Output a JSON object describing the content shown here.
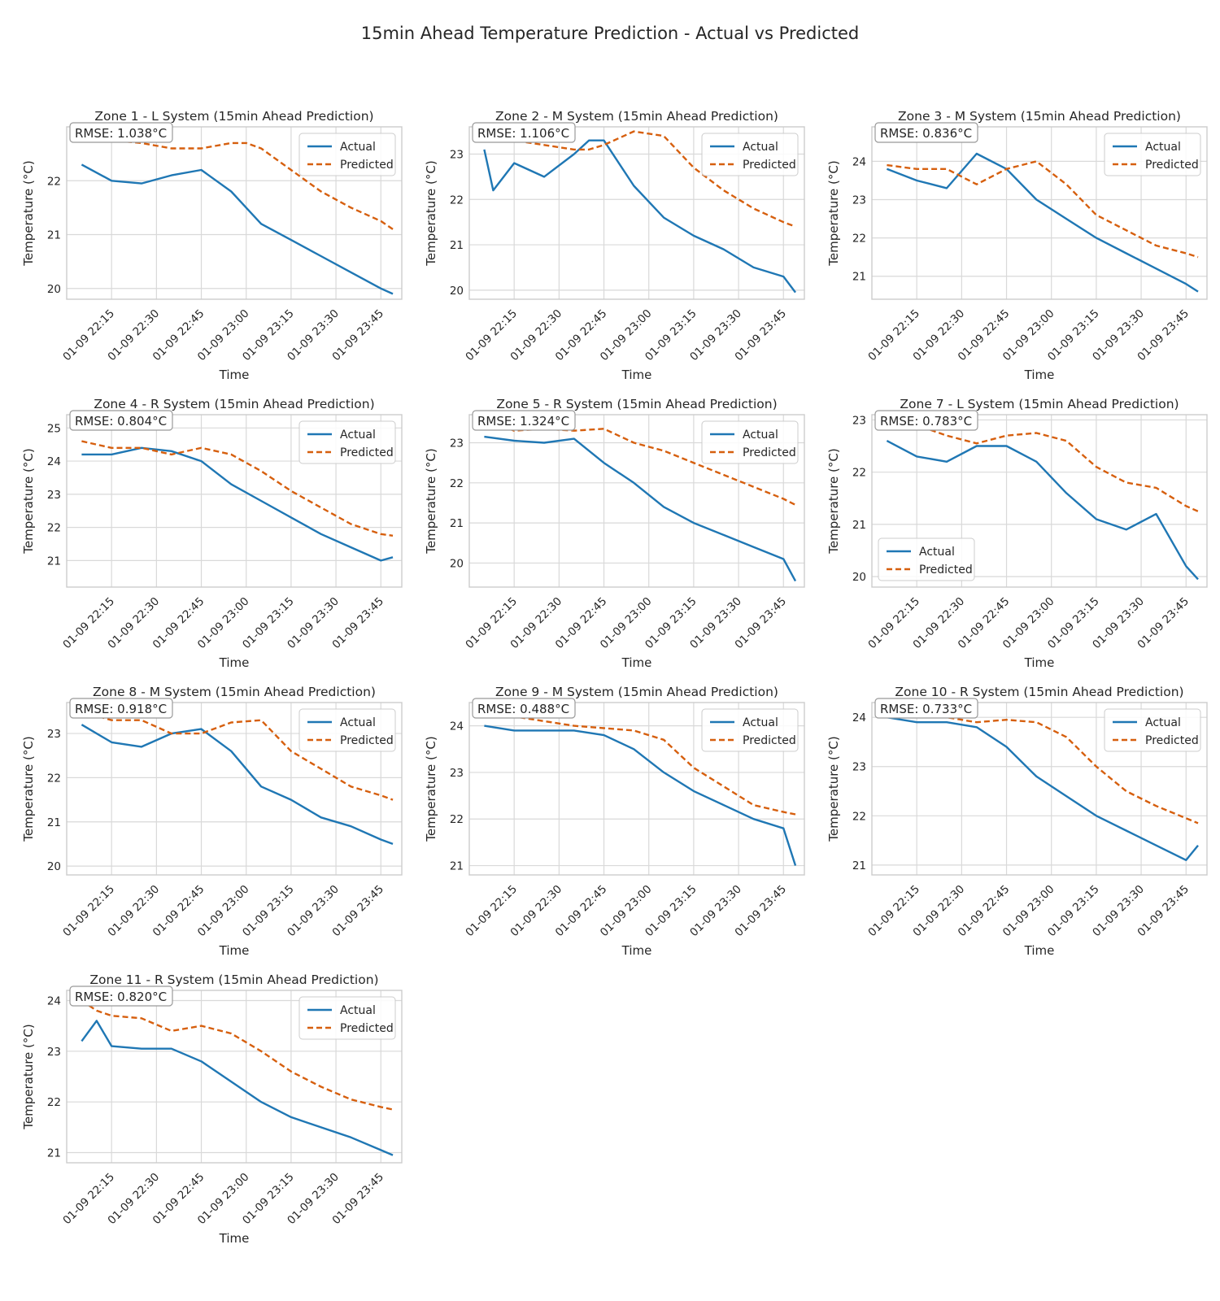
{
  "figure_title": "15min Ahead Temperature Prediction - Actual vs Predicted",
  "colors": {
    "actual": "#1f77b4",
    "predicted": "#d65f0e",
    "grid": "#d9d9d9",
    "axes": "#cccccc"
  },
  "legend_labels": {
    "actual": "Actual",
    "predicted": "Predicted"
  },
  "x_ticks": [
    "01-09 22:15",
    "01-09 22:30",
    "01-09 22:45",
    "01-09 23:00",
    "01-09 23:15",
    "01-09 23:30",
    "01-09 23:45"
  ],
  "x_label": "Time",
  "y_label": "Temperature (°C)",
  "chart_data": [
    {
      "type": "line",
      "title": "Zone 1 - L System (15min Ahead Prediction)",
      "rmse": "RMSE: 1.038°C",
      "ylim": [
        19.8,
        23.0
      ],
      "yticks": [
        20,
        21,
        22
      ],
      "legend": "top-right",
      "x": [
        "22:05",
        "22:15",
        "22:25",
        "22:35",
        "22:45",
        "22:55",
        "23:00",
        "23:05",
        "23:15",
        "23:25",
        "23:35",
        "23:45",
        "23:49"
      ],
      "series": [
        {
          "name": "Actual",
          "values": [
            22.3,
            22.0,
            21.95,
            22.1,
            22.2,
            21.8,
            21.5,
            21.2,
            20.9,
            20.6,
            20.3,
            20.0,
            19.9
          ]
        },
        {
          "name": "Predicted",
          "values": [
            22.8,
            22.75,
            22.7,
            22.6,
            22.6,
            22.7,
            22.7,
            22.6,
            22.2,
            21.8,
            21.5,
            21.25,
            21.1
          ]
        }
      ]
    },
    {
      "type": "line",
      "title": "Zone 2 - M System (15min Ahead Prediction)",
      "rmse": "RMSE: 1.106°C",
      "ylim": [
        19.8,
        23.6
      ],
      "yticks": [
        20,
        21,
        22,
        23
      ],
      "legend": "top-right",
      "x": [
        "22:05",
        "22:08",
        "22:15",
        "22:25",
        "22:35",
        "22:40",
        "22:45",
        "22:55",
        "23:05",
        "23:15",
        "23:25",
        "23:35",
        "23:45",
        "23:49"
      ],
      "series": [
        {
          "name": "Actual",
          "values": [
            23.1,
            22.2,
            22.8,
            22.5,
            23.0,
            23.3,
            23.3,
            22.3,
            21.6,
            21.2,
            20.9,
            20.5,
            20.3,
            19.95
          ]
        },
        {
          "name": "Predicted",
          "values": [
            23.6,
            23.5,
            23.3,
            23.2,
            23.1,
            23.1,
            23.2,
            23.5,
            23.4,
            22.7,
            22.2,
            21.8,
            21.5,
            21.4
          ]
        }
      ]
    },
    {
      "type": "line",
      "title": "Zone 3 - M System (15min Ahead Prediction)",
      "rmse": "RMSE: 0.836°C",
      "ylim": [
        20.4,
        24.9
      ],
      "yticks": [
        21,
        22,
        23,
        24
      ],
      "legend": "top-right",
      "x": [
        "22:05",
        "22:15",
        "22:25",
        "22:35",
        "22:45",
        "22:55",
        "23:05",
        "23:15",
        "23:25",
        "23:35",
        "23:45",
        "23:49"
      ],
      "series": [
        {
          "name": "Actual",
          "values": [
            23.8,
            23.5,
            23.3,
            24.2,
            23.8,
            23.0,
            22.5,
            22.0,
            21.6,
            21.2,
            20.8,
            20.6
          ]
        },
        {
          "name": "Predicted",
          "values": [
            23.9,
            23.8,
            23.8,
            23.4,
            23.8,
            24.0,
            23.4,
            22.6,
            22.2,
            21.8,
            21.6,
            21.5
          ]
        }
      ]
    },
    {
      "type": "line",
      "title": "Zone 4 - R System (15min Ahead Prediction)",
      "rmse": "RMSE: 0.804°C",
      "ylim": [
        20.2,
        25.4
      ],
      "yticks": [
        21,
        22,
        23,
        24,
        25
      ],
      "legend": "top-right",
      "x": [
        "22:05",
        "22:15",
        "22:25",
        "22:35",
        "22:45",
        "22:55",
        "23:05",
        "23:15",
        "23:25",
        "23:35",
        "23:45",
        "23:49"
      ],
      "series": [
        {
          "name": "Actual",
          "values": [
            24.2,
            24.2,
            24.4,
            24.3,
            24.0,
            23.3,
            22.8,
            22.3,
            21.8,
            21.4,
            21.0,
            21.1
          ]
        },
        {
          "name": "Predicted",
          "values": [
            24.6,
            24.4,
            24.4,
            24.2,
            24.4,
            24.2,
            23.7,
            23.1,
            22.6,
            22.1,
            21.8,
            21.75
          ]
        }
      ]
    },
    {
      "type": "line",
      "title": "Zone 5 - R System (15min Ahead Prediction)",
      "rmse": "RMSE: 1.324°C",
      "ylim": [
        19.4,
        23.7
      ],
      "yticks": [
        20,
        21,
        22,
        23
      ],
      "legend": "top-right",
      "x": [
        "22:05",
        "22:15",
        "22:25",
        "22:35",
        "22:45",
        "22:55",
        "23:05",
        "23:15",
        "23:25",
        "23:35",
        "23:45",
        "23:49"
      ],
      "series": [
        {
          "name": "Actual",
          "values": [
            23.15,
            23.05,
            23.0,
            23.1,
            22.5,
            22.0,
            21.4,
            21.0,
            20.7,
            20.4,
            20.1,
            19.55
          ]
        },
        {
          "name": "Predicted",
          "values": [
            23.6,
            23.3,
            23.35,
            23.3,
            23.35,
            23.0,
            22.8,
            22.5,
            22.2,
            21.9,
            21.6,
            21.45
          ]
        }
      ]
    },
    {
      "type": "line",
      "title": "Zone 7 - L System (15min Ahead Prediction)",
      "rmse": "RMSE: 0.783°C",
      "ylim": [
        19.8,
        23.1
      ],
      "yticks": [
        20,
        21,
        22,
        23
      ],
      "legend": "bottom-left",
      "x": [
        "22:05",
        "22:15",
        "22:25",
        "22:35",
        "22:45",
        "22:55",
        "23:05",
        "23:15",
        "23:25",
        "23:35",
        "23:45",
        "23:49"
      ],
      "series": [
        {
          "name": "Actual",
          "values": [
            22.6,
            22.3,
            22.2,
            22.5,
            22.5,
            22.2,
            21.6,
            21.1,
            20.9,
            21.2,
            20.2,
            19.95
          ]
        },
        {
          "name": "Predicted",
          "values": [
            23.0,
            22.9,
            22.7,
            22.55,
            22.7,
            22.75,
            22.6,
            22.1,
            21.8,
            21.7,
            21.35,
            21.25
          ]
        }
      ]
    },
    {
      "type": "line",
      "title": "Zone 8 - M System (15min Ahead Prediction)",
      "rmse": "RMSE: 0.918°C",
      "ylim": [
        19.8,
        23.7
      ],
      "yticks": [
        20,
        21,
        22,
        23
      ],
      "legend": "top-right",
      "x": [
        "22:05",
        "22:15",
        "22:25",
        "22:35",
        "22:45",
        "22:55",
        "23:05",
        "23:15",
        "23:25",
        "23:35",
        "23:45",
        "23:49"
      ],
      "series": [
        {
          "name": "Actual",
          "values": [
            23.2,
            22.8,
            22.7,
            23.0,
            23.1,
            22.6,
            21.8,
            21.5,
            21.1,
            20.9,
            20.6,
            20.5
          ]
        },
        {
          "name": "Predicted",
          "values": [
            23.5,
            23.3,
            23.3,
            23.0,
            23.0,
            23.25,
            23.3,
            22.6,
            22.2,
            21.8,
            21.6,
            21.5
          ]
        }
      ]
    },
    {
      "type": "line",
      "title": "Zone 9 - M System (15min Ahead Prediction)",
      "rmse": "RMSE: 0.488°C",
      "ylim": [
        20.8,
        24.5
      ],
      "yticks": [
        21,
        22,
        23,
        24
      ],
      "legend": "top-right",
      "x": [
        "22:05",
        "22:15",
        "22:25",
        "22:35",
        "22:45",
        "22:55",
        "23:05",
        "23:15",
        "23:25",
        "23:35",
        "23:45",
        "23:49"
      ],
      "series": [
        {
          "name": "Actual",
          "values": [
            24.0,
            23.9,
            23.9,
            23.9,
            23.8,
            23.5,
            23.0,
            22.6,
            22.3,
            22.0,
            21.8,
            21.0
          ]
        },
        {
          "name": "Predicted",
          "values": [
            24.3,
            24.2,
            24.1,
            24.0,
            23.95,
            23.9,
            23.7,
            23.1,
            22.7,
            22.3,
            22.15,
            22.1
          ]
        }
      ]
    },
    {
      "type": "line",
      "title": "Zone 10 - R System (15min Ahead Prediction)",
      "rmse": "RMSE: 0.733°C",
      "ylim": [
        20.8,
        24.3
      ],
      "yticks": [
        21,
        22,
        23,
        24
      ],
      "legend": "top-right",
      "x": [
        "22:05",
        "22:15",
        "22:25",
        "22:35",
        "22:45",
        "22:55",
        "23:05",
        "23:15",
        "23:25",
        "23:35",
        "23:45",
        "23:49"
      ],
      "series": [
        {
          "name": "Actual",
          "values": [
            24.0,
            23.9,
            23.9,
            23.8,
            23.4,
            22.8,
            22.4,
            22.0,
            21.7,
            21.4,
            21.1,
            21.4
          ]
        },
        {
          "name": "Predicted",
          "values": [
            24.2,
            24.1,
            24.0,
            23.9,
            23.95,
            23.9,
            23.6,
            23.0,
            22.5,
            22.2,
            21.95,
            21.85
          ]
        }
      ]
    },
    {
      "type": "line",
      "title": "Zone 11 - R System (15min Ahead Prediction)",
      "rmse": "RMSE: 0.820°C",
      "ylim": [
        20.8,
        24.2
      ],
      "yticks": [
        21,
        22,
        23,
        24
      ],
      "legend": "top-right",
      "x": [
        "22:05",
        "22:10",
        "22:15",
        "22:25",
        "22:35",
        "22:45",
        "22:55",
        "23:05",
        "23:15",
        "23:25",
        "23:35",
        "23:45",
        "23:49"
      ],
      "series": [
        {
          "name": "Actual",
          "values": [
            23.2,
            23.6,
            23.1,
            23.05,
            23.05,
            22.8,
            22.4,
            22.0,
            21.7,
            21.5,
            21.3,
            21.05,
            20.95
          ]
        },
        {
          "name": "Predicted",
          "values": [
            24.0,
            23.8,
            23.7,
            23.65,
            23.4,
            23.5,
            23.35,
            23.0,
            22.6,
            22.3,
            22.05,
            21.9,
            21.85
          ]
        }
      ]
    }
  ]
}
